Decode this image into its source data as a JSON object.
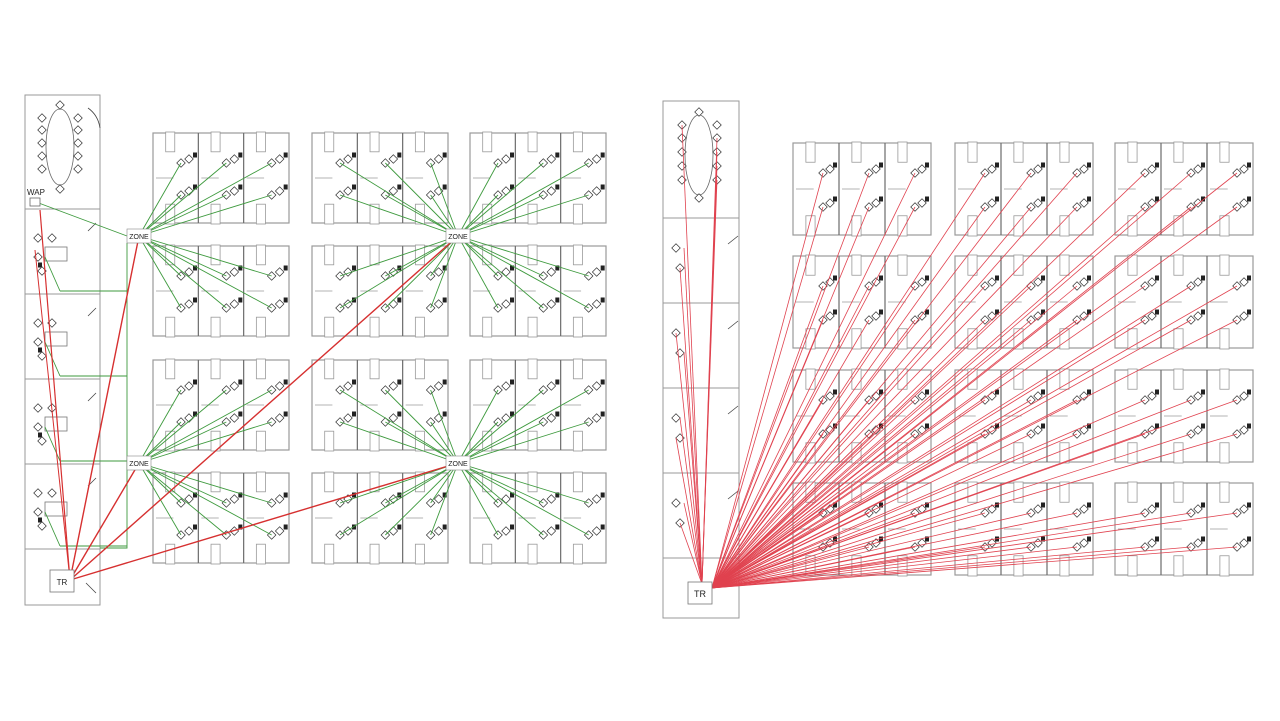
{
  "left_plan": {
    "wap_label": "WAP",
    "zone_label": "ZONE",
    "tr_label": "TR"
  },
  "right_plan": {
    "tr_label": "TR"
  },
  "colors": {
    "wall": "#9a9a9a",
    "wall_dark": "#6b6b6b",
    "zone_cable": "#3e9a3e",
    "home_run": "#d63030",
    "direct_cable": "#e0424f"
  }
}
